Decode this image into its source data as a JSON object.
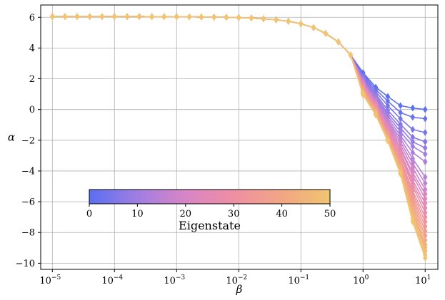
{
  "chart_data": {
    "type": "line",
    "xlabel": "β",
    "ylabel": "α",
    "x_scale": "log",
    "xlim": [
      1e-05,
      10
    ],
    "ylim": [
      -10.4,
      6.8
    ],
    "grid": true,
    "x_tick_values": [
      1e-05,
      0.0001,
      0.001,
      0.01,
      0.1,
      1,
      10
    ],
    "x_tick_labels": [
      {
        "base": "10",
        "exp": "−5"
      },
      {
        "base": "10",
        "exp": "−4"
      },
      {
        "base": "10",
        "exp": "−3"
      },
      {
        "base": "10",
        "exp": "−2"
      },
      {
        "base": "10",
        "exp": "−1"
      },
      {
        "base": "10",
        "exp": "0"
      },
      {
        "base": "10",
        "exp": "1"
      }
    ],
    "y_ticks": [
      6,
      4,
      2,
      0,
      -2,
      -4,
      -6,
      -8,
      -10
    ],
    "y_tick_labels": [
      "6",
      "4",
      "2",
      "0",
      "−2",
      "−4",
      "−6",
      "−8",
      "−10"
    ],
    "x": [
      1e-05,
      1.6e-05,
      2.5e-05,
      4e-05,
      6.3e-05,
      0.0001,
      0.00016,
      0.00025,
      0.0004,
      0.00063,
      0.001,
      0.0016,
      0.0025,
      0.004,
      0.0063,
      0.01,
      0.016,
      0.025,
      0.04,
      0.063,
      0.1,
      0.16,
      0.25,
      0.4,
      0.63,
      1,
      1.6,
      2.5,
      4,
      6.3,
      10
    ],
    "shared_curve": [
      6.05,
      6.05,
      6.05,
      6.05,
      6.05,
      6.05,
      6.05,
      6.05,
      6.04,
      6.04,
      6.04,
      6.03,
      6.02,
      6.01,
      6.0,
      5.98,
      5.95,
      5.9,
      5.84,
      5.74,
      5.58,
      5.33,
      4.95,
      4.4,
      3.55
    ],
    "series_colormap": "eigenstate",
    "series": [
      {
        "state": 0,
        "values_tail": [
          2.4,
          1.45,
          0.85,
          0.25,
          0.1,
          0.0
        ]
      },
      {
        "state": 2,
        "values_tail": [
          2.3,
          1.3,
          0.55,
          -0.2,
          -0.5,
          -0.6
        ]
      },
      {
        "state": 4,
        "values_tail": [
          2.2,
          1.15,
          0.25,
          -0.6,
          -1.3,
          -1.5
        ]
      },
      {
        "state": 6,
        "values_tail": [
          2.1,
          1.0,
          -0.05,
          -0.95,
          -1.8,
          -2.1
        ]
      },
      {
        "state": 8,
        "values_tail": [
          2.0,
          0.9,
          -0.25,
          -1.2,
          -2.1,
          -2.5
        ]
      },
      {
        "state": 10,
        "values_tail": [
          1.95,
          0.8,
          -0.4,
          -1.45,
          -2.4,
          -2.9
        ]
      },
      {
        "state": 12,
        "values_tail": [
          1.9,
          0.7,
          -0.55,
          -1.7,
          -2.8,
          -3.4
        ]
      },
      {
        "state": 14,
        "values_tail": [
          1.85,
          0.6,
          -0.7,
          -1.9,
          -3.2,
          -4.4
        ]
      },
      {
        "state": 16,
        "values_tail": [
          1.8,
          0.5,
          -0.8,
          -2.1,
          -3.5,
          -4.8
        ]
      },
      {
        "state": 18,
        "values_tail": [
          1.75,
          0.45,
          -0.9,
          -2.3,
          -3.8,
          -5.2
        ]
      },
      {
        "state": 20,
        "values_tail": [
          1.7,
          0.4,
          -1.0,
          -2.5,
          -4.1,
          -5.5
        ]
      },
      {
        "state": 22,
        "values_tail": [
          1.65,
          0.35,
          -1.1,
          -2.6,
          -4.3,
          -5.8
        ]
      },
      {
        "state": 24,
        "values_tail": [
          1.6,
          0.3,
          -1.2,
          -2.8,
          -4.6,
          -6.1
        ]
      },
      {
        "state": 26,
        "values_tail": [
          1.55,
          0.25,
          -1.3,
          -2.9,
          -4.8,
          -6.4
        ]
      },
      {
        "state": 28,
        "values_tail": [
          1.5,
          0.2,
          -1.4,
          -3.0,
          -5.0,
          -6.7
        ]
      },
      {
        "state": 30,
        "values_tail": [
          1.45,
          0.15,
          -1.5,
          -3.2,
          -5.3,
          -7.0
        ]
      },
      {
        "state": 32,
        "values_tail": [
          1.4,
          0.1,
          -1.6,
          -3.3,
          -5.5,
          -7.3
        ]
      },
      {
        "state": 34,
        "values_tail": [
          1.35,
          0.05,
          -1.65,
          -3.4,
          -5.7,
          -7.6
        ]
      },
      {
        "state": 36,
        "values_tail": [
          1.3,
          0.0,
          -1.7,
          -3.5,
          -5.9,
          -7.9
        ]
      },
      {
        "state": 38,
        "values_tail": [
          1.25,
          -0.05,
          -1.75,
          -3.6,
          -6.1,
          -8.2
        ]
      },
      {
        "state": 40,
        "values_tail": [
          1.2,
          -0.1,
          -1.8,
          -3.7,
          -6.3,
          -8.5
        ]
      },
      {
        "state": 42,
        "values_tail": [
          1.15,
          -0.15,
          -1.85,
          -3.8,
          -6.5,
          -8.8
        ]
      },
      {
        "state": 44,
        "values_tail": [
          1.1,
          -0.2,
          -1.9,
          -3.9,
          -6.7,
          -9.0
        ]
      },
      {
        "state": 46,
        "values_tail": [
          1.05,
          -0.25,
          -1.95,
          -4.0,
          -6.9,
          -9.2
        ]
      },
      {
        "state": 48,
        "values_tail": [
          1.0,
          -0.3,
          -2.0,
          -4.1,
          -7.1,
          -9.45
        ]
      },
      {
        "state": 50,
        "values_tail": [
          0.95,
          -0.35,
          -2.05,
          -4.2,
          -7.3,
          -9.65
        ]
      }
    ],
    "colorbar": {
      "label": "Eigenstate",
      "min": 0,
      "max": 50,
      "ticks": [
        0,
        10,
        20,
        30,
        40,
        50
      ],
      "tick_labels": [
        "0",
        "10",
        "20",
        "30",
        "40",
        "50"
      ],
      "position": "lower-left",
      "colors": [
        "#5b6ff0",
        "#a07ee2",
        "#d885c5",
        "#ee8fa3",
        "#f2a684",
        "#f0c470"
      ]
    }
  }
}
